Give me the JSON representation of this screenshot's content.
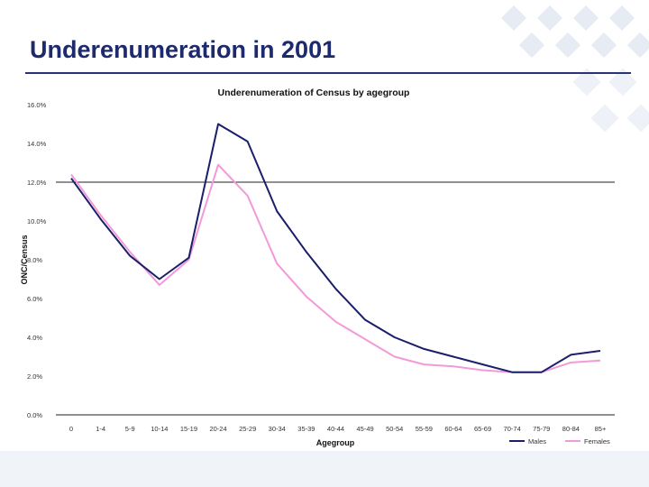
{
  "slide": {
    "title": "Underenumeration in 2001"
  },
  "colors": {
    "title": "#1d2a6e",
    "males": "#1b1f6b",
    "females": "#f29ad9",
    "axis": "#222222"
  },
  "chart_data": {
    "type": "line",
    "title": "Underenumeration of Census by agegroup",
    "xlabel": "Agegroup",
    "ylabel": "ONC/Census",
    "categories": [
      "0",
      "1-4",
      "5-9",
      "10-14",
      "15-19",
      "20-24",
      "25-29",
      "30-34",
      "35-39",
      "40-44",
      "45-49",
      "50-54",
      "55-59",
      "60-64",
      "65-69",
      "70-74",
      "75-79",
      "80-84",
      "85+"
    ],
    "ylim": [
      0,
      16
    ],
    "yticks": [
      "0.0%",
      "2.0%",
      "4.0%",
      "6.0%",
      "8.0%",
      "10.0%",
      "12.0%",
      "14.0%",
      "16.0%"
    ],
    "reference_line": 12,
    "grid": false,
    "legend_position": "bottom-right",
    "series": [
      {
        "name": "Males",
        "values": [
          12.2,
          10.1,
          8.2,
          7.0,
          8.1,
          15.0,
          14.1,
          10.5,
          8.4,
          6.5,
          4.9,
          4.0,
          3.4,
          3.0,
          2.6,
          2.2,
          2.2,
          3.1,
          3.3
        ]
      },
      {
        "name": "Females",
        "values": [
          12.4,
          10.3,
          8.4,
          6.7,
          8.0,
          12.9,
          11.3,
          7.8,
          6.1,
          4.8,
          3.9,
          3.0,
          2.6,
          2.5,
          2.3,
          2.2,
          2.2,
          2.7,
          2.8
        ]
      }
    ]
  }
}
